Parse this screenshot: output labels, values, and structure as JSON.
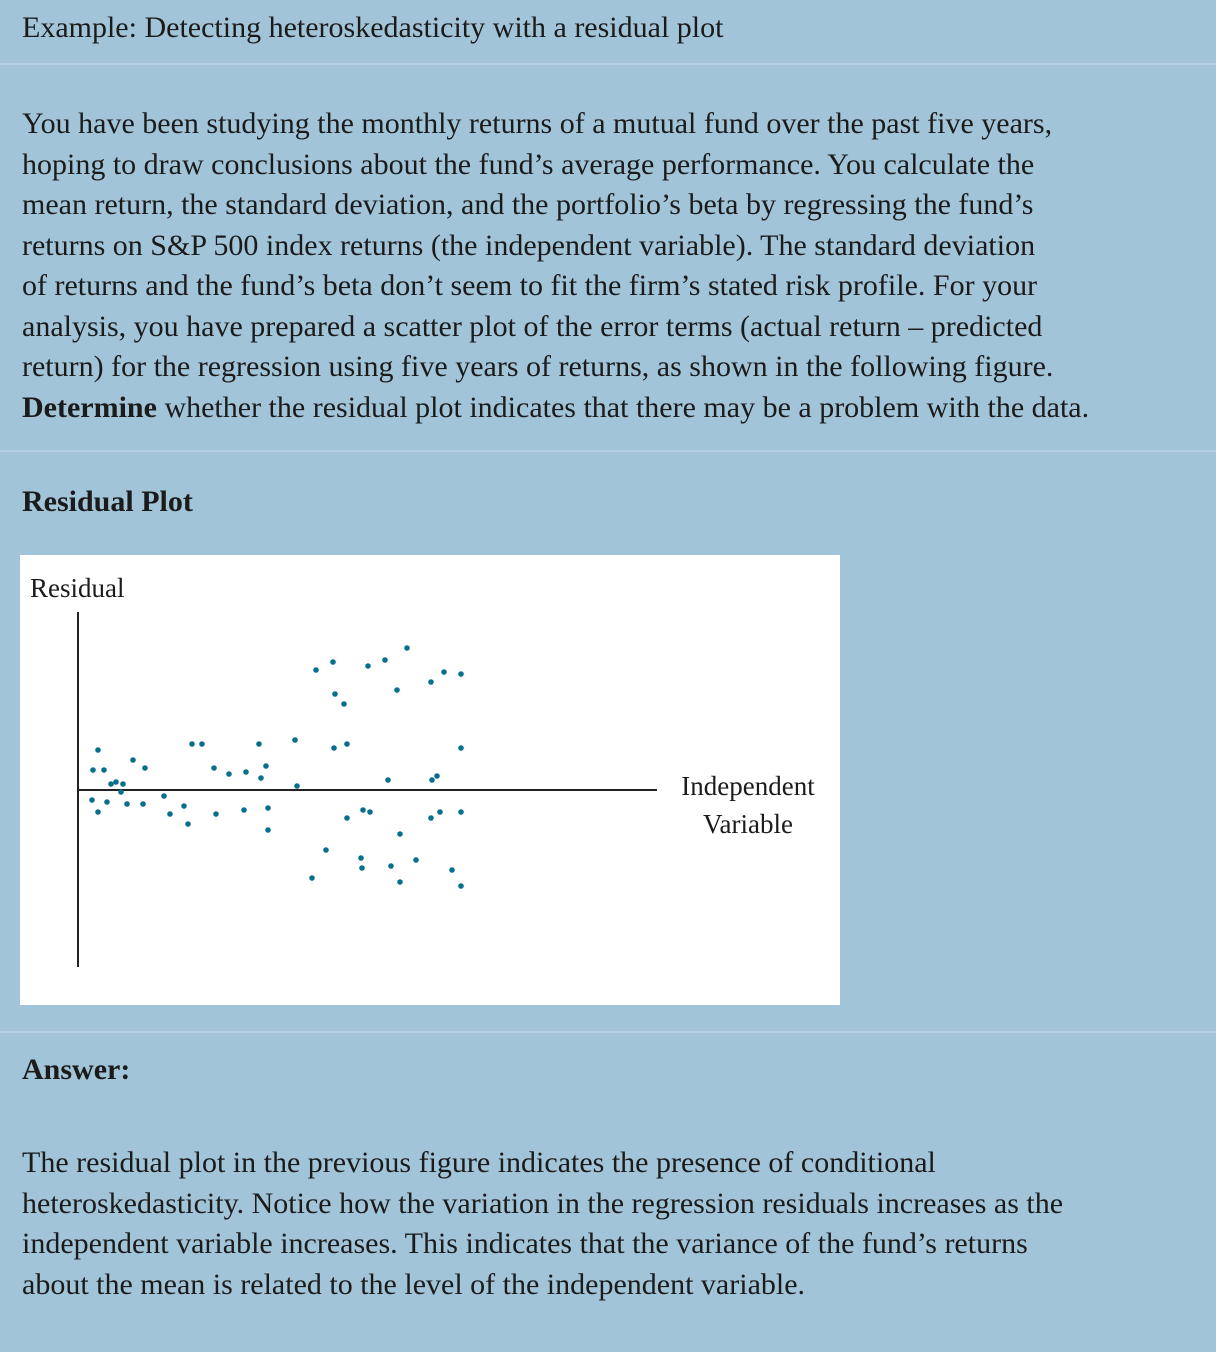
{
  "title": "Example: Detecting heteroskedasticity with a residual plot",
  "problem": {
    "lines": [
      "You have been studying the monthly returns of a mutual fund over the past five years,",
      "hoping to draw conclusions about the fund’s average performance. You calculate the",
      "mean return, the standard deviation, and the portfolio’s beta by regressing the fund’s",
      "returns on S&P 500 index returns (the independent variable). The standard deviation",
      "of returns and the fund’s beta don’t seem to fit the firm’s stated risk profile. For your",
      "analysis, you have prepared a scatter plot of the error terms (actual return – predicted",
      "return) for the regression using five years of returns, as shown in the following figure."
    ],
    "last_line_bold": "Determine",
    "last_line_rest": " whether the residual plot indicates that there may be a problem with the data."
  },
  "section_heading": "Residual Plot",
  "chart_data": {
    "type": "scatter",
    "ylabel": "Residual",
    "xlabel_line1": "Independent",
    "xlabel_line2": "Variable",
    "grid": false,
    "legend": "none",
    "xlim": [
      0,
      60
    ],
    "ylim": [
      -100,
      100
    ],
    "point_color": "#0a6f8c",
    "axis_color": "#222222",
    "points": [
      {
        "x": 2,
        "y": 20
      },
      {
        "x": 2.6,
        "y": 10
      },
      {
        "x": 3.3,
        "y": 3
      },
      {
        "x": 3.8,
        "y": 4
      },
      {
        "x": 4.5,
        "y": 3
      },
      {
        "x": 4.3,
        "y": -1
      },
      {
        "x": 5.5,
        "y": 15
      },
      {
        "x": 6.7,
        "y": 11
      },
      {
        "x": 1.5,
        "y": 10
      },
      {
        "x": 1.4,
        "y": -5
      },
      {
        "x": 2,
        "y": -11
      },
      {
        "x": 2.9,
        "y": -6
      },
      {
        "x": 4.9,
        "y": -7
      },
      {
        "x": 6.5,
        "y": -7
      },
      {
        "x": 8.6,
        "y": -3
      },
      {
        "x": 9.2,
        "y": -12
      },
      {
        "x": 10.6,
        "y": -8
      },
      {
        "x": 11,
        "y": -17
      },
      {
        "x": 11.4,
        "y": 23
      },
      {
        "x": 12.4,
        "y": 23
      },
      {
        "x": 13.6,
        "y": 11
      },
      {
        "x": 13.8,
        "y": -12
      },
      {
        "x": 15.1,
        "y": 8
      },
      {
        "x": 16.8,
        "y": 9
      },
      {
        "x": 16.6,
        "y": -10
      },
      {
        "x": 18.1,
        "y": 23
      },
      {
        "x": 18.8,
        "y": 12
      },
      {
        "x": 18.3,
        "y": 6
      },
      {
        "x": 19,
        "y": -9
      },
      {
        "x": 19,
        "y": -20
      },
      {
        "x": 21.7,
        "y": 25
      },
      {
        "x": 21.9,
        "y": 2
      },
      {
        "x": 23.4,
        "y": -44
      },
      {
        "x": 23.8,
        "y": 60
      },
      {
        "x": 24.8,
        "y": -30
      },
      {
        "x": 25.6,
        "y": 21
      },
      {
        "x": 25.5,
        "y": 64
      },
      {
        "x": 25.7,
        "y": 48
      },
      {
        "x": 26.6,
        "y": 43
      },
      {
        "x": 26.9,
        "y": 23
      },
      {
        "x": 26.9,
        "y": -14
      },
      {
        "x": 28.3,
        "y": -34
      },
      {
        "x": 28.4,
        "y": -39
      },
      {
        "x": 28.5,
        "y": -10
      },
      {
        "x": 29,
        "y": 62
      },
      {
        "x": 29.2,
        "y": -11
      },
      {
        "x": 30.7,
        "y": 65
      },
      {
        "x": 31,
        "y": 5
      },
      {
        "x": 31.3,
        "y": -38
      },
      {
        "x": 31.9,
        "y": 50
      },
      {
        "x": 32.2,
        "y": -22
      },
      {
        "x": 32.2,
        "y": -46
      },
      {
        "x": 32.9,
        "y": 71
      },
      {
        "x": 33.8,
        "y": -35
      },
      {
        "x": 35.3,
        "y": 54
      },
      {
        "x": 35.3,
        "y": -14
      },
      {
        "x": 35.4,
        "y": 5
      },
      {
        "x": 36.6,
        "y": 59
      },
      {
        "x": 35.9,
        "y": 7
      },
      {
        "x": 36.2,
        "y": -11
      },
      {
        "x": 37.4,
        "y": -40
      },
      {
        "x": 38.3,
        "y": 58
      },
      {
        "x": 38.3,
        "y": 21
      },
      {
        "x": 38.3,
        "y": -11
      },
      {
        "x": 38.3,
        "y": -48
      }
    ]
  },
  "answer_label": "Answer:",
  "answer_lines": [
    "The residual plot in the previous figure indicates the presence of conditional",
    "heteroskedasticity. Notice how the variation in the regression residuals increases as the",
    "independent variable increases. This indicates that the variance of the fund’s returns",
    "about the mean is related to the level of the independent variable."
  ]
}
